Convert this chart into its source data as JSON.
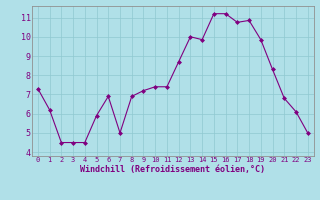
{
  "x": [
    0,
    1,
    2,
    3,
    4,
    5,
    6,
    7,
    8,
    9,
    10,
    11,
    12,
    13,
    14,
    15,
    16,
    17,
    18,
    19,
    20,
    21,
    22,
    23
  ],
  "y": [
    7.3,
    6.2,
    4.5,
    4.5,
    4.5,
    5.9,
    6.9,
    5.0,
    6.9,
    7.2,
    7.4,
    7.4,
    8.7,
    10.0,
    9.85,
    11.2,
    11.2,
    10.75,
    10.85,
    9.85,
    8.3,
    6.8,
    6.1,
    5.0
  ],
  "line_color": "#800080",
  "marker": "D",
  "marker_size": 2.0,
  "bg_color": "#b0e0e8",
  "grid_color": "#90c8d0",
  "xlabel": "Windchill (Refroidissement éolien,°C)",
  "xlabel_color": "#800080",
  "ylabel_ticks": [
    4,
    5,
    6,
    7,
    8,
    9,
    10,
    11
  ],
  "xticks": [
    0,
    1,
    2,
    3,
    4,
    5,
    6,
    7,
    8,
    9,
    10,
    11,
    12,
    13,
    14,
    15,
    16,
    17,
    18,
    19,
    20,
    21,
    22,
    23
  ],
  "ylim": [
    3.8,
    11.6
  ],
  "xlim": [
    -0.5,
    23.5
  ],
  "tick_color": "#800080",
  "tick_fontsize": 5.0,
  "xlabel_fontsize": 6.0,
  "linewidth": 0.8
}
